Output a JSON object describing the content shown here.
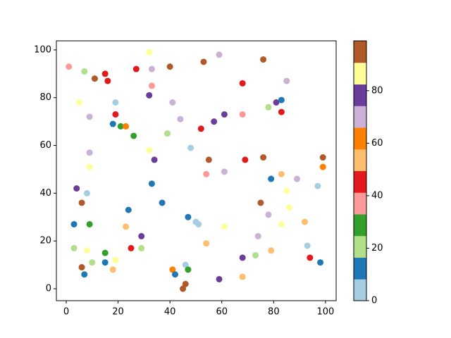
{
  "chart_data": {
    "type": "scatter",
    "x": [
      1,
      7,
      15,
      16,
      11,
      32,
      27,
      33,
      40,
      53,
      59,
      76,
      85,
      68,
      33,
      5,
      19,
      32,
      41,
      9,
      19,
      44,
      61,
      57,
      68,
      78,
      81,
      83,
      83,
      18,
      21,
      23,
      52,
      26,
      39,
      48,
      32,
      9,
      34,
      55,
      69,
      76,
      99,
      99,
      9,
      54,
      61,
      83,
      79,
      89,
      97,
      85,
      4,
      8,
      33,
      6,
      37,
      75,
      86,
      24,
      78,
      3,
      9,
      47,
      50,
      51,
      83,
      92,
      23,
      61,
      74,
      29,
      54,
      3,
      8,
      25,
      29,
      15,
      93,
      73,
      68,
      79,
      94,
      19,
      10,
      15,
      98,
      46,
      6,
      18,
      41,
      47,
      7,
      42,
      46,
      45,
      59,
      68
    ],
    "y": [
      93,
      91,
      90,
      87,
      88,
      99,
      92,
      92,
      93,
      95,
      98,
      96,
      87,
      86,
      85,
      78,
      78,
      81,
      78,
      72,
      73,
      71,
      73,
      70,
      73,
      76,
      78,
      79,
      74,
      69,
      68,
      68,
      67,
      64,
      65,
      59,
      58,
      57,
      54,
      54,
      54,
      55,
      55,
      51,
      51,
      48,
      49,
      48,
      46,
      46,
      43,
      41,
      42,
      40,
      44,
      36,
      36,
      36,
      34,
      33,
      31,
      27,
      27,
      30,
      28,
      27,
      27,
      28,
      26,
      26,
      22,
      22,
      19,
      17,
      16,
      17,
      17,
      15,
      18,
      14,
      13,
      16,
      13,
      12,
      11,
      11,
      11,
      10,
      9,
      8,
      8,
      8,
      6,
      6,
      2,
      0,
      4,
      5
    ],
    "c": [
      37,
      21,
      45,
      45,
      95,
      87,
      45,
      70,
      95,
      95,
      70,
      95,
      70,
      45,
      37,
      87,
      4,
      78,
      70,
      70,
      45,
      70,
      78,
      78,
      37,
      21,
      78,
      12,
      45,
      12,
      29,
      62,
      45,
      29,
      21,
      4,
      87,
      70,
      78,
      95,
      45,
      95,
      95,
      62,
      87,
      37,
      70,
      54,
      12,
      70,
      4,
      87,
      78,
      4,
      12,
      95,
      12,
      95,
      87,
      12,
      70,
      12,
      29,
      12,
      4,
      4,
      87,
      54,
      54,
      87,
      70,
      78,
      54,
      21,
      87,
      45,
      21,
      29,
      4,
      21,
      78,
      54,
      45,
      87,
      21,
      12,
      12,
      4,
      95,
      54,
      62,
      29,
      12,
      12,
      95,
      95,
      78,
      54
    ],
    "colormap": [
      "#a6cee3",
      "#1f78b4",
      "#b2df8a",
      "#33a02c",
      "#fb9a99",
      "#e31a1c",
      "#fdbf6f",
      "#ff7f00",
      "#cab2d6",
      "#6a3d9a",
      "#ffff99",
      "#b15928"
    ],
    "clim": [
      0,
      99
    ],
    "cticks": [
      0,
      20,
      40,
      60,
      80
    ],
    "xlim": [
      -3.8,
      104.1
    ],
    "xticks": [
      0,
      20,
      40,
      60,
      80,
      100
    ],
    "ylim": [
      -5,
      103.8
    ],
    "yticks": [
      0,
      20,
      40,
      60,
      80,
      100
    ]
  }
}
